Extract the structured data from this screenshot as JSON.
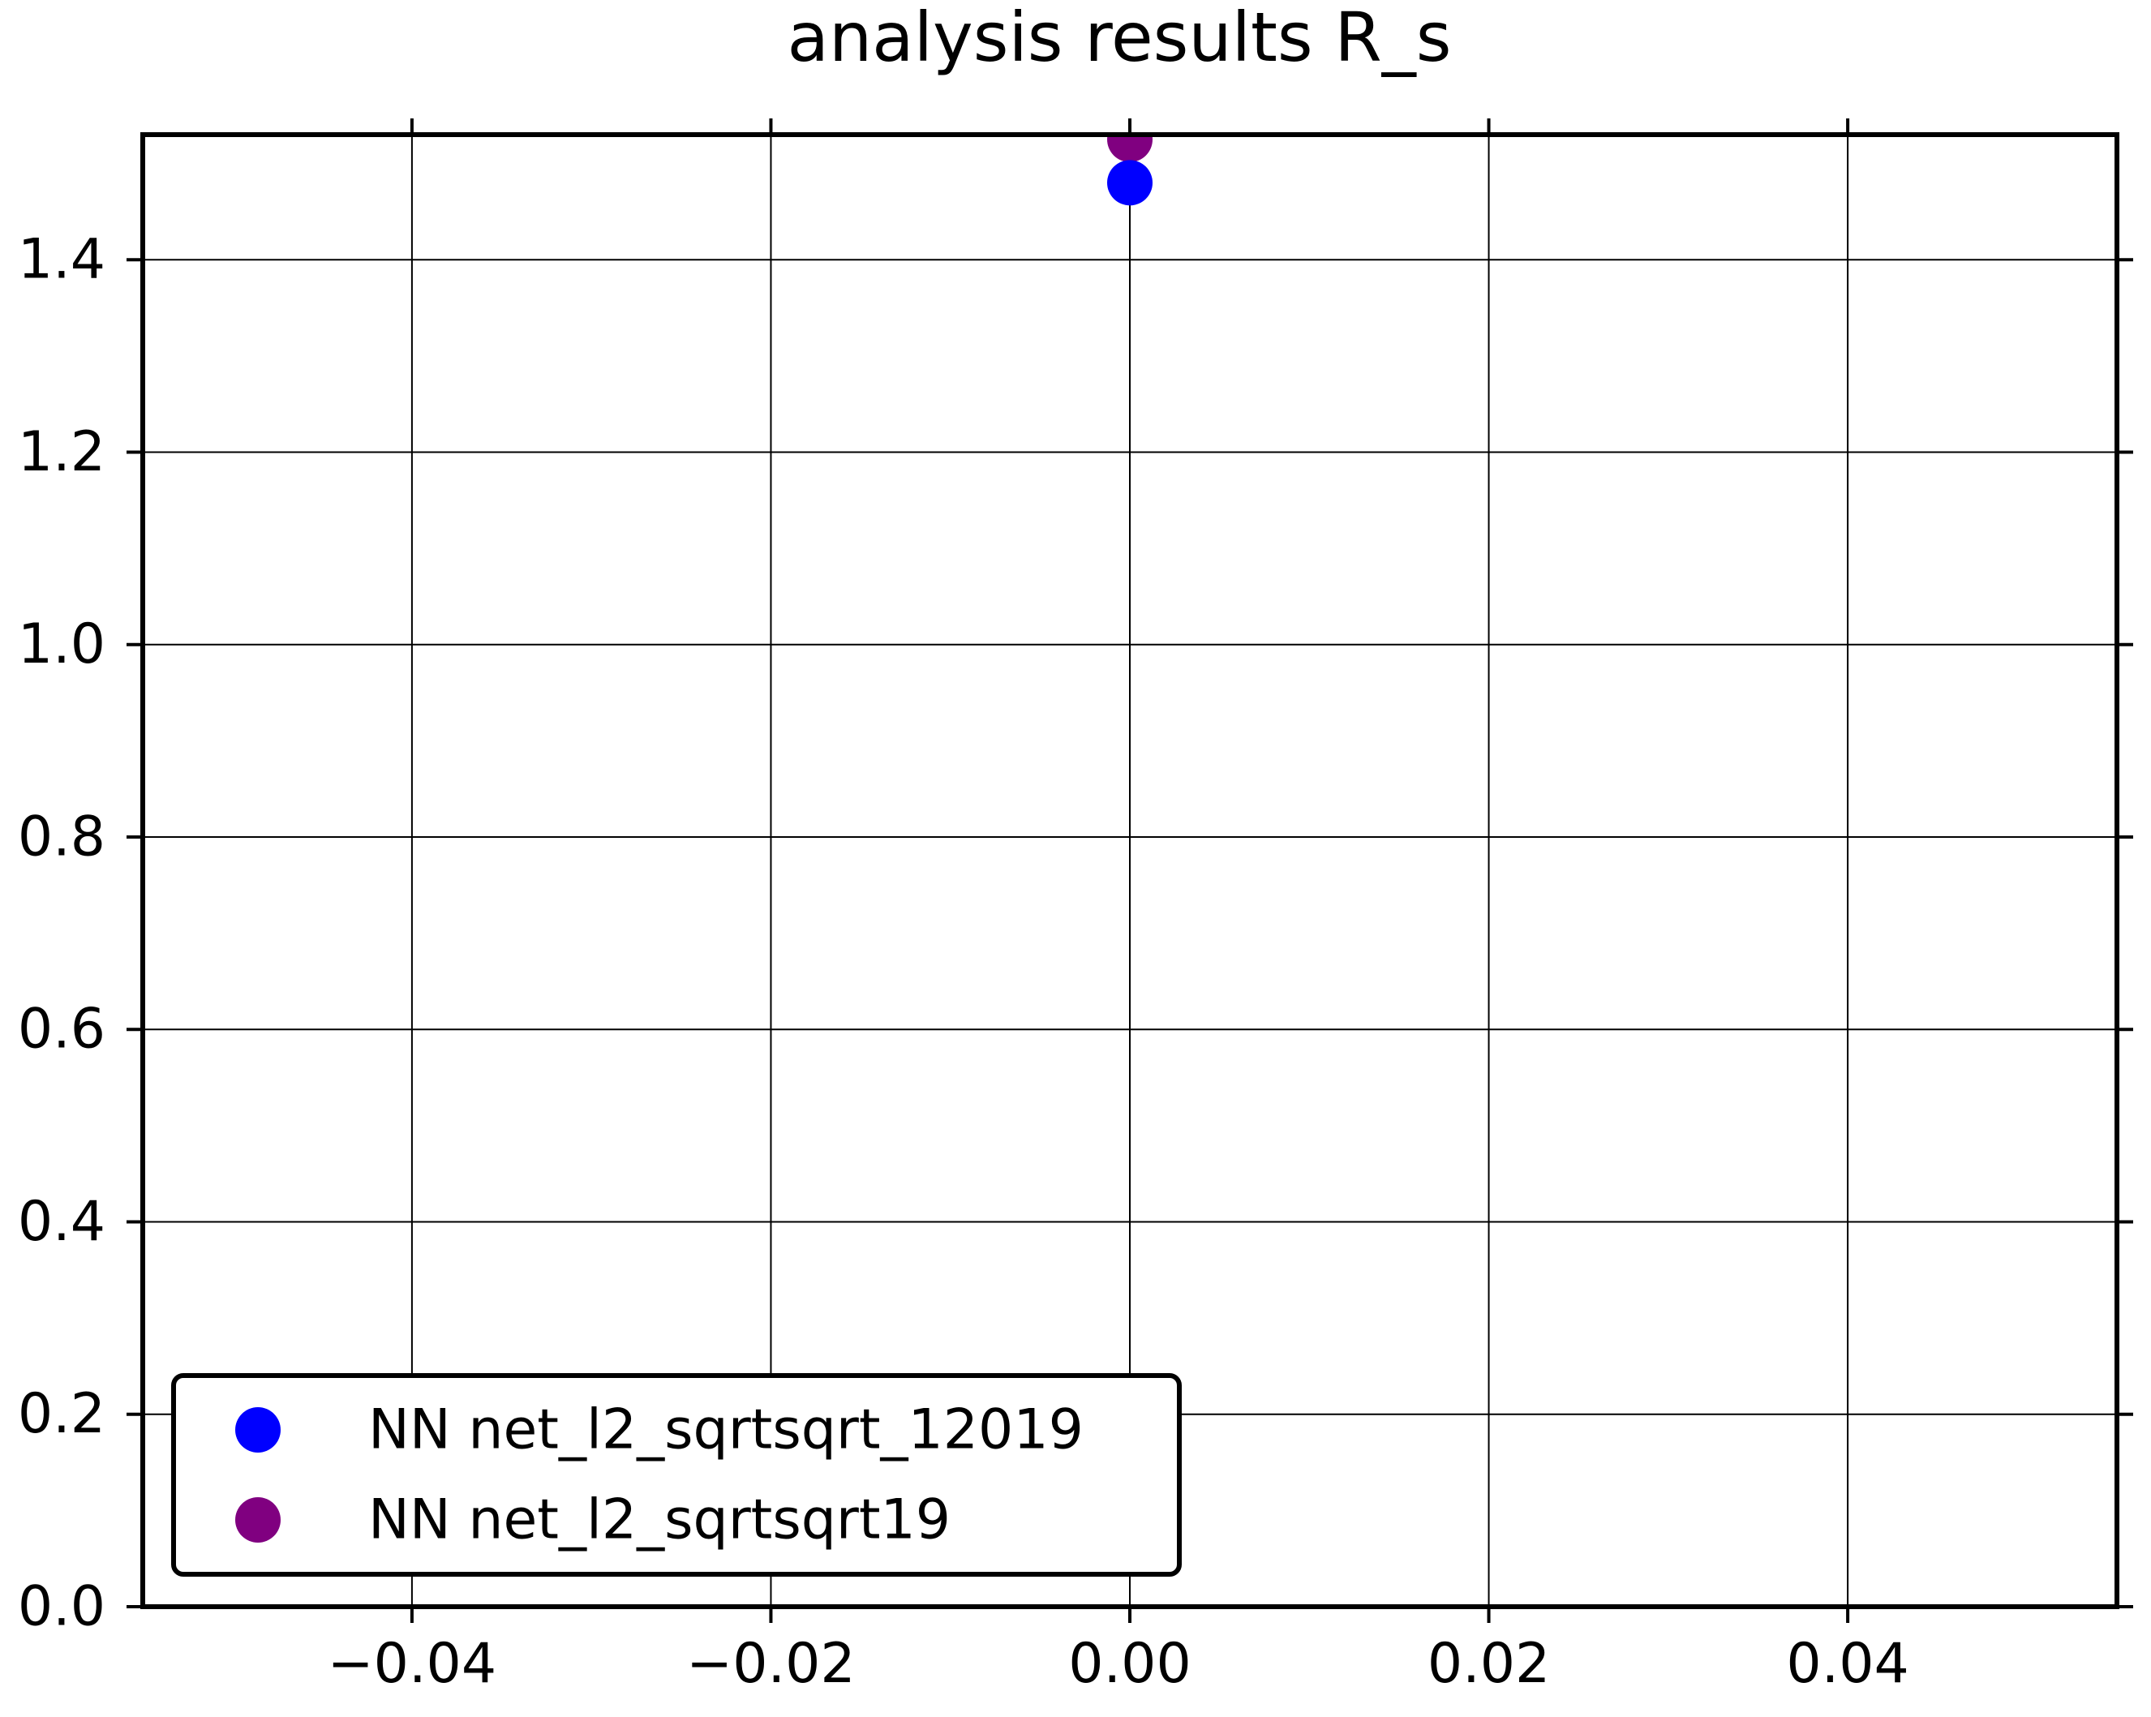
{
  "chart_data": {
    "type": "scatter",
    "title": "analysis results R_s",
    "xlabel": "",
    "ylabel": "",
    "xlim": [
      -0.055,
      0.055
    ],
    "ylim": [
      0.0,
      1.53
    ],
    "xticks": [
      -0.04,
      -0.02,
      0.0,
      0.02,
      0.04
    ],
    "xtick_labels": [
      "−0.04",
      "−0.02",
      "0.00",
      "0.02",
      "0.04"
    ],
    "yticks": [
      0.0,
      0.2,
      0.4,
      0.6,
      0.8,
      1.0,
      1.2,
      1.4
    ],
    "ytick_labels": [
      "0.0",
      "0.2",
      "0.4",
      "0.6",
      "0.8",
      "1.0",
      "1.2",
      "1.4"
    ],
    "grid": true,
    "legend_position": "lower-left",
    "series": [
      {
        "name": "NN net_l2_sqrtsqrt_12019",
        "color": "#0000ff",
        "points": [
          {
            "x": 0.0,
            "y": 1.48
          }
        ]
      },
      {
        "name": "NN net_l2_sqrtsqrt19",
        "color": "#800080",
        "points": [
          {
            "x": 0.0,
            "y": 1.525
          }
        ]
      }
    ]
  }
}
